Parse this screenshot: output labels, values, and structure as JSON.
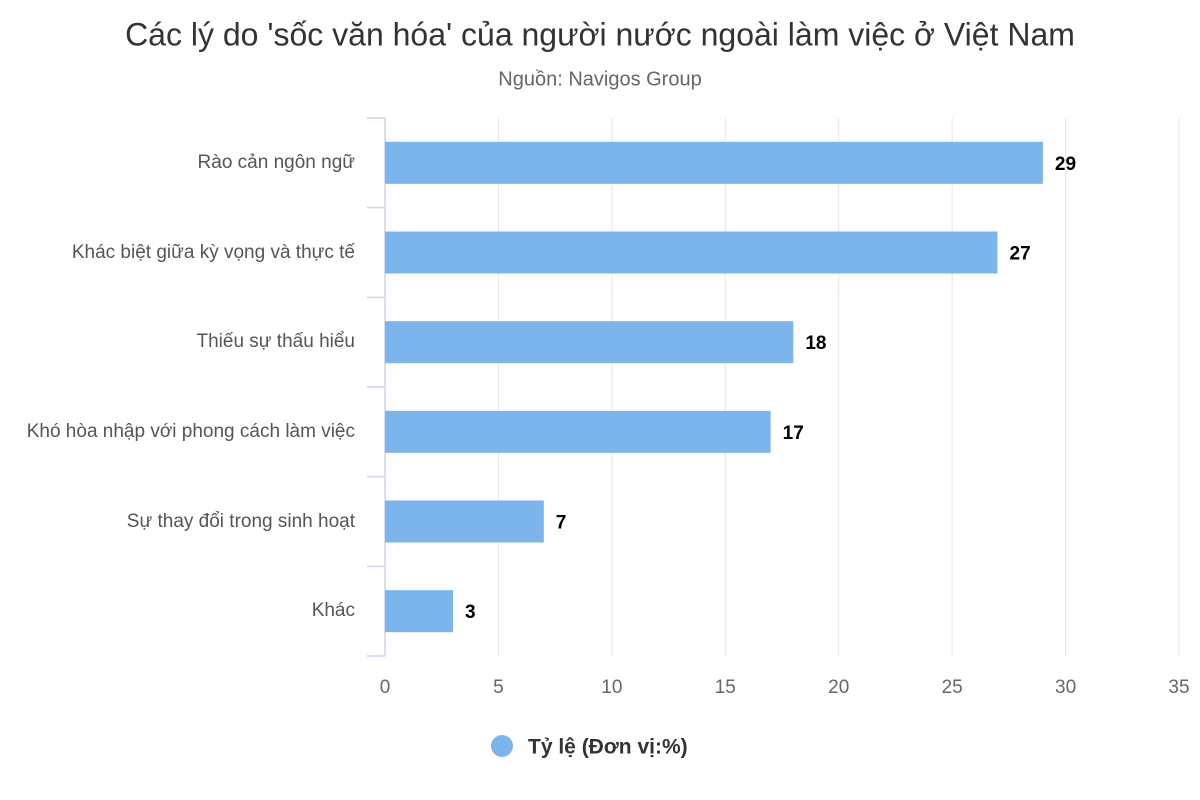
{
  "chart_data": {
    "type": "bar",
    "orientation": "horizontal",
    "title": "Các lý do 'sốc văn hóa' của người nước ngoài làm việc ở Việt Nam",
    "subtitle": "Nguồn: Navigos Group",
    "categories": [
      "Rào cản ngôn ngữ",
      "Khác biệt giữa kỳ vọng và thực tế",
      "Thiếu sự thấu hiểu",
      "Khó hòa nhập với phong cách làm việc",
      "Sự thay đổi trong sinh hoạt",
      "Khác"
    ],
    "series": [
      {
        "name": "Tỷ lệ (Đơn vị:%)",
        "color": "#7cb5ec",
        "values": [
          29,
          27,
          18,
          17,
          7,
          3
        ]
      }
    ],
    "xlim": [
      0,
      35
    ],
    "xticks": [
      0,
      5,
      10,
      15,
      20,
      25,
      30,
      35
    ],
    "grid": true
  }
}
